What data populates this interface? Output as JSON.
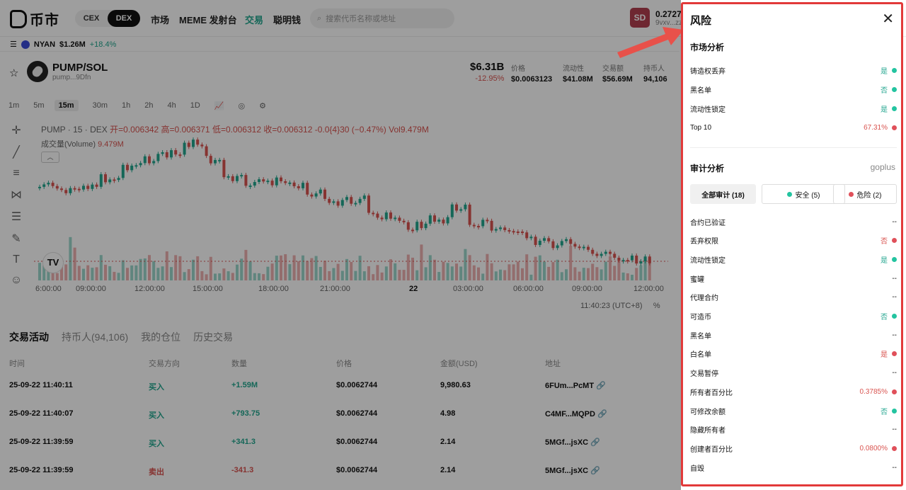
{
  "brand": {
    "name": "币市"
  },
  "header": {
    "seg": [
      "CEX",
      "DEX"
    ],
    "nav": [
      "市场",
      "MEME 发射台",
      "交易",
      "聪明钱"
    ],
    "search_placeholder": "搜索代币名称或地址",
    "avatar": "SD",
    "balance": "0.2727",
    "address": "9vxv...zz"
  },
  "ticker": {
    "symbol": "NYAN",
    "price": "$1.26M",
    "change": "+18.4%"
  },
  "pair": {
    "name": "PUMP/SOL",
    "address": "pump...9Dfn"
  },
  "stats": {
    "mcap": "$6.31B",
    "mcap_change": "-12.95%",
    "cols": [
      {
        "label": "价格",
        "value": "$0.0063123"
      },
      {
        "label": "流动性",
        "value": "$41.08M"
      },
      {
        "label": "交易额",
        "value": "$56.69M"
      },
      {
        "label": "持币人",
        "value": "94,106"
      }
    ]
  },
  "intervals": [
    "1m",
    "5m",
    "15m",
    "30m",
    "1h",
    "2h",
    "4h",
    "1D"
  ],
  "chart_legend": {
    "title": "PUMP · 15 · DEX",
    "ohlc": "开=0.006342 高=0.006371 低=0.006312 收=0.006312 -0.0{4}30 (−0.47%) Vol9.479M",
    "volume_label": "成交量(Volume)",
    "volume_value": "9.479M"
  },
  "x_ticks": [
    "6:00:00",
    "09:00:00",
    "12:00:00",
    "15:00:00",
    "18:00:00",
    "21:00:00",
    "22",
    "03:00:00",
    "06:00:00",
    "09:00:00",
    "12:00:00"
  ],
  "clock": "11:40:23 (UTC+8)",
  "bottom_tabs": [
    "交易活动",
    "持币人(94,106)",
    "我的仓位",
    "历史交易"
  ],
  "table": {
    "headers": [
      "时间",
      "交易方向",
      "数量",
      "价格",
      "金额(USD)",
      "地址"
    ],
    "rows": [
      {
        "time": "25-09-22 11:40:11",
        "side": "买入",
        "qty": "+1.59M",
        "price": "$0.0062744",
        "usd": "9,980.63",
        "addr": "6FUm...PcMT"
      },
      {
        "time": "25-09-22 11:40:07",
        "side": "买入",
        "qty": "+793.75",
        "price": "$0.0062744",
        "usd": "4.98",
        "addr": "C4MF...MQPD"
      },
      {
        "time": "25-09-22 11:39:59",
        "side": "买入",
        "qty": "+341.3",
        "price": "$0.0062744",
        "usd": "2.14",
        "addr": "5MGf...jsXC"
      },
      {
        "time": "25-09-22 11:39:59",
        "side": "卖出",
        "qty": "-341.3",
        "price": "$0.0062744",
        "usd": "2.14",
        "addr": "5MGf...jsXC"
      }
    ]
  },
  "risk": {
    "title": "风险",
    "market_title": "市场分析",
    "market": [
      {
        "label": "铸造权丢弃",
        "value": "是",
        "status": "good"
      },
      {
        "label": "黑名单",
        "value": "否",
        "status": "good"
      },
      {
        "label": "流动性锁定",
        "value": "是",
        "status": "good"
      },
      {
        "label": "Top 10",
        "value": "67.31%",
        "status": "bad"
      }
    ],
    "audit_title": "审计分析",
    "audit_source": "goplus",
    "filters": [
      "全部审计 (18)",
      "安全 (5)",
      "危险 (2)"
    ],
    "audit": [
      {
        "label": "合约已验证",
        "value": "--",
        "status": "none"
      },
      {
        "label": "丢弃权限",
        "value": "否",
        "status": "bad"
      },
      {
        "label": "流动性锁定",
        "value": "是",
        "status": "good"
      },
      {
        "label": "蜜罐",
        "value": "--",
        "status": "none"
      },
      {
        "label": "代理合约",
        "value": "--",
        "status": "none"
      },
      {
        "label": "可造币",
        "value": "否",
        "status": "good"
      },
      {
        "label": "黑名单",
        "value": "--",
        "status": "none"
      },
      {
        "label": "白名单",
        "value": "是",
        "status": "bad"
      },
      {
        "label": "交易暂停",
        "value": "--",
        "status": "none"
      },
      {
        "label": "所有者百分比",
        "value": "0.3785%",
        "status": "bad"
      },
      {
        "label": "可修改余额",
        "value": "否",
        "status": "good"
      },
      {
        "label": "隐藏所有者",
        "value": "--",
        "status": "none"
      },
      {
        "label": "创建者百分比",
        "value": "0.0800%",
        "status": "bad"
      },
      {
        "label": "自毁",
        "value": "--",
        "status": "none"
      }
    ]
  },
  "colors": {
    "up": "#23a68f",
    "down": "#d9534f",
    "highlight": "#e23a3a"
  }
}
